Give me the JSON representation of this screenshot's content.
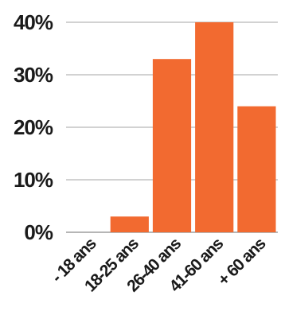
{
  "chart_data": {
    "type": "bar",
    "title": "",
    "xlabel": "",
    "ylabel": "",
    "categories": [
      "- 18 ans",
      "18-25 ans",
      "26-40 ans",
      "41-60 ans",
      "+ 60 ans"
    ],
    "values": [
      0,
      3,
      33,
      40,
      24
    ],
    "ylim": [
      0,
      40
    ],
    "yticks": [
      0,
      10,
      20,
      30,
      40
    ],
    "ytick_labels": [
      "0%",
      "10%",
      "20%",
      "30%",
      "40%"
    ],
    "grid": true,
    "bar_color": "#f26a30",
    "text_color": "#1a1a1a"
  }
}
